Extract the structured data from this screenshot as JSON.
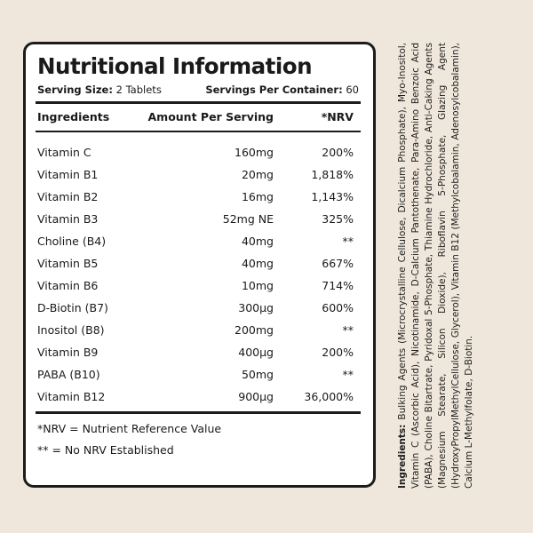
{
  "panel": {
    "title": "Nutritional Information",
    "serving_size_label": "Serving Size:",
    "serving_size_value": "2 Tablets",
    "servings_per_container_label": "Servings Per Container:",
    "servings_per_container_value": "60",
    "columns": {
      "ingredients": "Ingredients",
      "amount": "Amount Per Serving",
      "nrv": "*NRV"
    },
    "rows": [
      {
        "name": "Vitamin C",
        "amount": "160mg",
        "nrv": "200%"
      },
      {
        "name": "Vitamin B1",
        "amount": "20mg",
        "nrv": "1,818%"
      },
      {
        "name": "Vitamin B2",
        "amount": "16mg",
        "nrv": "1,143%"
      },
      {
        "name": "Vitamin B3",
        "amount": "52mg NE",
        "nrv": "325%"
      },
      {
        "name": "Choline (B4)",
        "amount": "40mg",
        "nrv": "**"
      },
      {
        "name": "Vitamin B5",
        "amount": "40mg",
        "nrv": "667%"
      },
      {
        "name": "Vitamin B6",
        "amount": "10mg",
        "nrv": "714%"
      },
      {
        "name": "D-Biotin (B7)",
        "amount": "300µg",
        "nrv": "600%"
      },
      {
        "name": "Inositol (B8)",
        "amount": "200mg",
        "nrv": "**"
      },
      {
        "name": "Vitamin B9",
        "amount": "400µg",
        "nrv": "200%"
      },
      {
        "name": "PABA (B10)",
        "amount": "50mg",
        "nrv": "**"
      },
      {
        "name": "Vitamin B12",
        "amount": "900µg",
        "nrv": "36,000%"
      }
    ],
    "footnotes": [
      "*NRV = Nutrient Reference Value",
      "** = No NRV Established"
    ]
  },
  "side_ingredients": {
    "label": "Ingredients:",
    "text": "Bulking Agents (Microcrystalline Cellulose, Dicalcium Phosphate), Myo-Inositol, Vitamin C (Ascorbic Acid), Nicotinamide, D-Calcium Pantothenate, Para-Amino Benzoic Acid (PABA), Choline Bitartrate, Pyridoxal 5-Phosphate, Thiamine Hydrochloride, Anti-Caking Agents (Magnesium Stearate, Silicon Dioxide), Riboflavin 5-Phosphate, Glazing Agent (HydroxyPropylMethylCellulose, Glycerol), Vitamin B12 (Methylcobalamin, Adenosylcobalamin), Calcium L-Methylfolate, D-Biotin."
  },
  "colors": {
    "background": "#efe7db",
    "panel": "#ffffff",
    "border": "#1c1c1c"
  }
}
